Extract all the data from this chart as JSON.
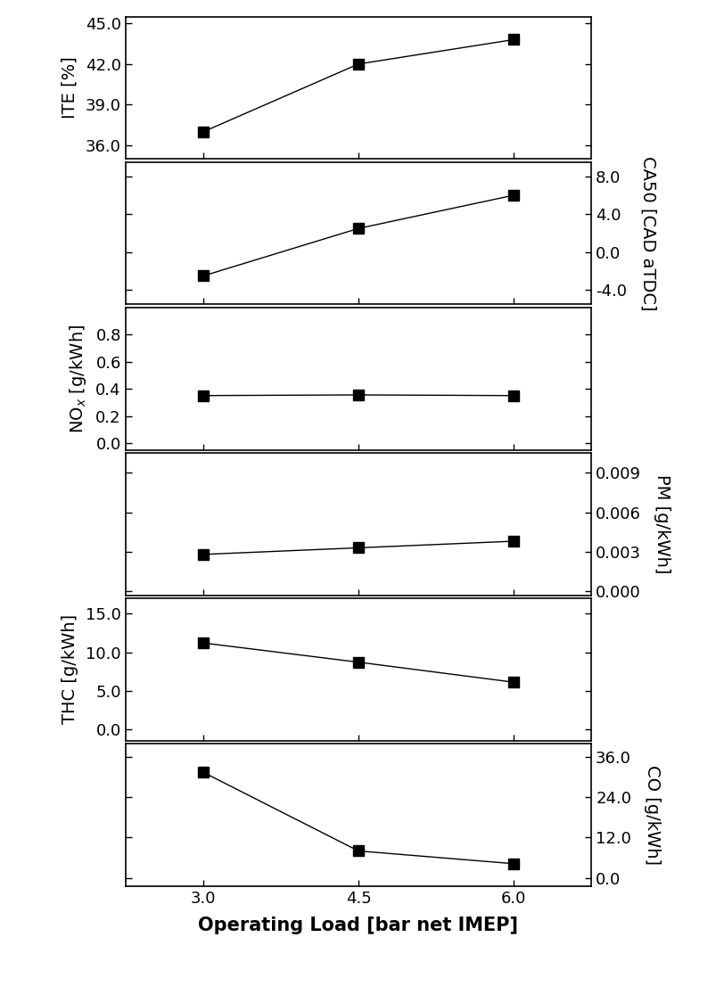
{
  "x": [
    3.0,
    4.5,
    6.0
  ],
  "ITE": [
    37.0,
    42.0,
    43.8
  ],
  "CA50": [
    -2.5,
    2.5,
    6.0
  ],
  "NOx": [
    0.35,
    0.355,
    0.35
  ],
  "PM": [
    0.0028,
    0.0033,
    0.0038
  ],
  "THC": [
    11.2,
    8.7,
    6.1
  ],
  "CO": [
    31.5,
    8.0,
    4.2
  ],
  "ITE_ylim": [
    35.0,
    45.5
  ],
  "ITE_yticks": [
    36.0,
    39.0,
    42.0,
    45.0
  ],
  "CA50_ylim": [
    -5.5,
    9.5
  ],
  "CA50_yticks": [
    -4.0,
    0.0,
    4.0,
    8.0
  ],
  "NOx_ylim": [
    -0.05,
    1.0
  ],
  "NOx_yticks": [
    0.0,
    0.2,
    0.4,
    0.6,
    0.8
  ],
  "PM_ylim": [
    -0.0003,
    0.0105
  ],
  "PM_yticks": [
    0.0,
    0.003,
    0.006,
    0.009
  ],
  "THC_ylim": [
    -1.5,
    17.0
  ],
  "THC_yticks": [
    0.0,
    5.0,
    10.0,
    15.0
  ],
  "CO_ylim": [
    -2.5,
    40.0
  ],
  "CO_yticks": [
    0.0,
    12.0,
    24.0,
    36.0
  ],
  "xlabel": "Operating Load [bar net IMEP]",
  "marker": "s",
  "marker_size": 9,
  "line_color": "black",
  "marker_color": "black",
  "fig_width": 8.04,
  "fig_height": 11.25,
  "dpi": 100
}
